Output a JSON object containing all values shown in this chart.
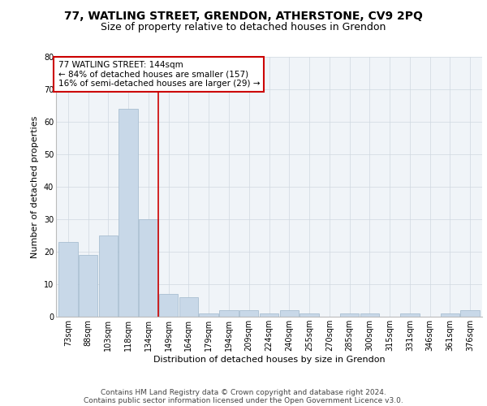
{
  "title1": "77, WATLING STREET, GRENDON, ATHERSTONE, CV9 2PQ",
  "title2": "Size of property relative to detached houses in Grendon",
  "xlabel": "Distribution of detached houses by size in Grendon",
  "ylabel": "Number of detached properties",
  "categories": [
    "73sqm",
    "88sqm",
    "103sqm",
    "118sqm",
    "134sqm",
    "149sqm",
    "164sqm",
    "179sqm",
    "194sqm",
    "209sqm",
    "224sqm",
    "240sqm",
    "255sqm",
    "270sqm",
    "285sqm",
    "300sqm",
    "315sqm",
    "331sqm",
    "346sqm",
    "361sqm",
    "376sqm"
  ],
  "values": [
    23,
    19,
    25,
    64,
    30,
    7,
    6,
    1,
    2,
    2,
    1,
    2,
    1,
    0,
    1,
    1,
    0,
    1,
    0,
    1,
    2
  ],
  "bar_color": "#c8d8e8",
  "bar_edge_color": "#a0b8cc",
  "vline_x": 4.5,
  "vline_color": "#cc0000",
  "annotation_text": "77 WATLING STREET: 144sqm\n← 84% of detached houses are smaller (157)\n16% of semi-detached houses are larger (29) →",
  "annotation_box_color": "#ffffff",
  "annotation_box_edge_color": "#cc0000",
  "ylim": [
    0,
    80
  ],
  "yticks": [
    0,
    10,
    20,
    30,
    40,
    50,
    60,
    70,
    80
  ],
  "footer_line1": "Contains HM Land Registry data © Crown copyright and database right 2024.",
  "footer_line2": "Contains public sector information licensed under the Open Government Licence v3.0.",
  "bg_color": "#ffffff",
  "grid_color": "#d0d8e0",
  "title_fontsize": 10,
  "subtitle_fontsize": 9,
  "axis_label_fontsize": 8,
  "tick_fontsize": 7,
  "annotation_fontsize": 7.5,
  "footer_fontsize": 6.5
}
